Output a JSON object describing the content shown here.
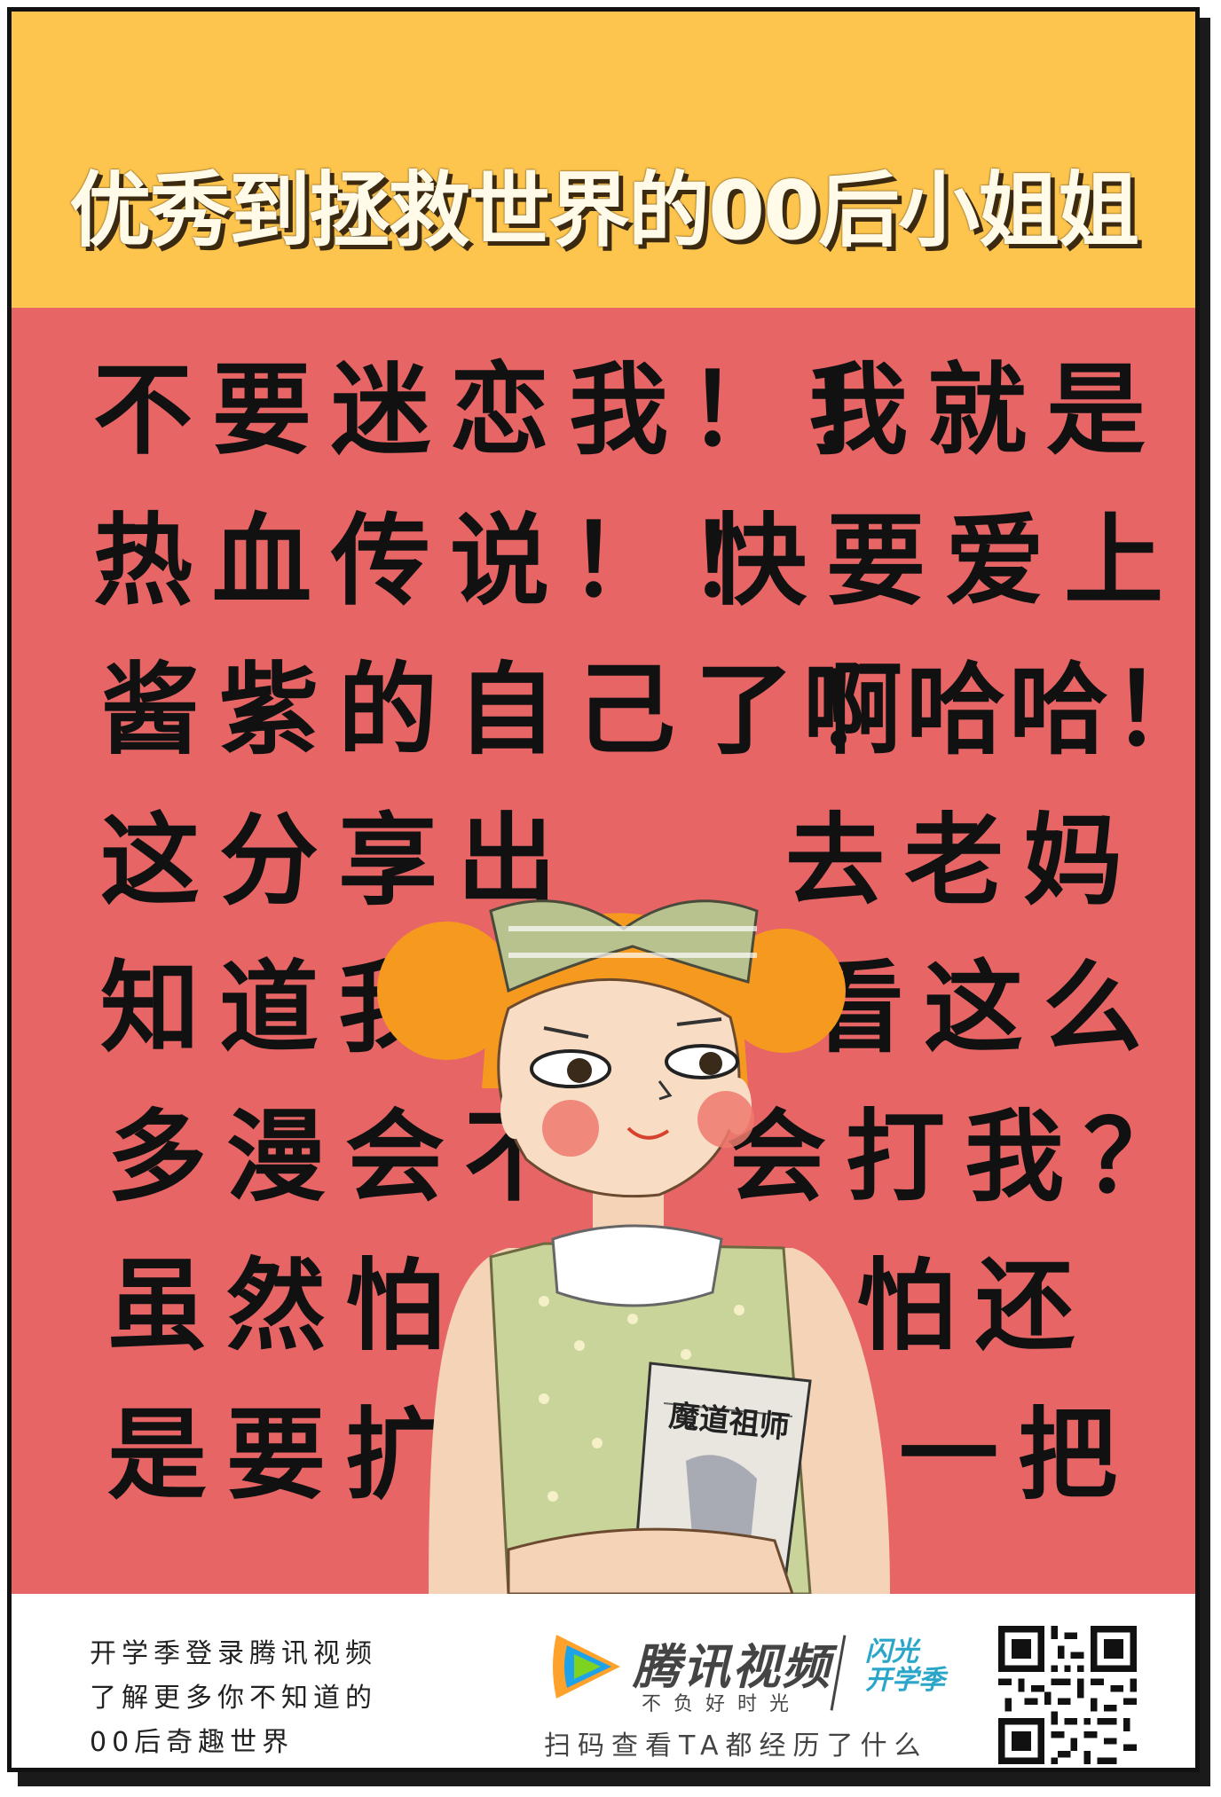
{
  "header": {
    "title": "优秀到拯救世界的00后小姐姐",
    "bg_color": "#fdc54d"
  },
  "body": {
    "bg_color": "#e86566",
    "lines": [
      {
        "left": "不要迷恋我！！",
        "right": "我就是"
      },
      {
        "left": "热血传说！！",
        "right": "快要爱上"
      },
      {
        "left": "酱紫的自己了！",
        "right": "啊哈哈！"
      },
      {
        "left": "这分享出",
        "right": "去老妈"
      },
      {
        "left": "知道我",
        "right": "看这么"
      },
      {
        "left": "多漫会不",
        "right": "会打我？"
      },
      {
        "left": "虽然怕",
        "right": "怕还"
      },
      {
        "left": "是要扩",
        "right": "一把"
      }
    ],
    "book_title": "魔道祖师"
  },
  "footer": {
    "promo_lines": [
      "开学季登录腾讯视频",
      "了解更多你不知道的",
      "00后奇趣世界"
    ],
    "brand_name": "腾讯视频",
    "brand_slogan": "不负好时光",
    "season_line1": "闪光",
    "season_line2": "开学季",
    "scan_text": "扫码查看TA都经历了什么",
    "icons": [
      "tencent-video-logo-icon",
      "qr-code-icon"
    ]
  }
}
